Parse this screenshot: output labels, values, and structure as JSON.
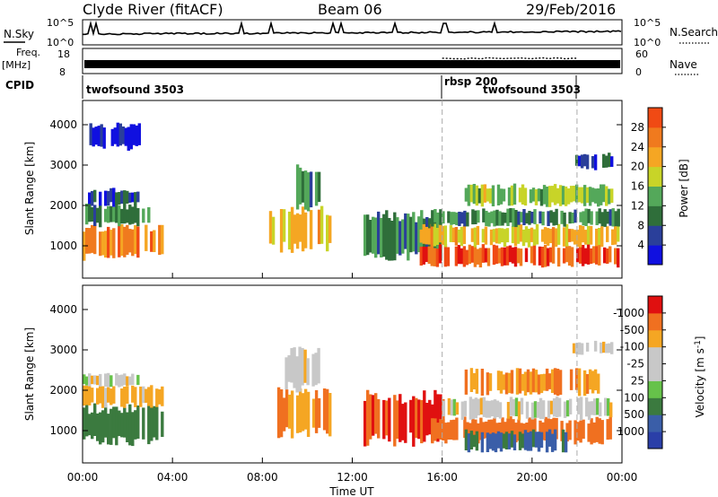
{
  "header": {
    "station": "Clyde River (fitACF)",
    "beam": "Beam 06",
    "date": "29/Feb/2016"
  },
  "status_panels": {
    "nsky_label": "N.Sky",
    "nsky_ticks": [
      "10^5",
      "10^0"
    ],
    "nsearch_label": "N.Search",
    "nsearch_ticks": [
      "10^5",
      "10^0"
    ],
    "freq_label": "Freq.",
    "freq_unit": "[MHz]",
    "freq_ticks": [
      "18",
      "8"
    ],
    "nave_label": "Nave",
    "nave_ticks": [
      "60",
      "0"
    ],
    "cpid_label": "CPID"
  },
  "cpid_segments": [
    {
      "name": "twofsound 3503",
      "start": "00:00",
      "end": "16:00"
    },
    {
      "name": "rbsp 200",
      "start": "16:00",
      "end": "22:00"
    },
    {
      "name": "twofsound 3503",
      "start": "16:00",
      "end": "22:00"
    }
  ],
  "x_axis": {
    "label": "Time UT",
    "ticks": [
      "00:00",
      "04:00",
      "08:00",
      "12:00",
      "16:00",
      "20:00",
      "00:00"
    ],
    "range_hours": [
      0,
      24
    ]
  },
  "power_panel": {
    "ylabel": "Slant Range [km]",
    "yticks": [
      "1000",
      "2000",
      "3000",
      "4000"
    ],
    "colorbar_label": "Power [dB]",
    "colorbar_ticks": [
      "4",
      "8",
      "12",
      "16",
      "20",
      "24",
      "28"
    ]
  },
  "velocity_panel": {
    "ylabel": "Slant Range [km]",
    "yticks": [
      "1000",
      "2000",
      "3000",
      "4000"
    ],
    "colorbar_label": "Velocity [m s",
    "colorbar_sup": "-1",
    "colorbar_label_end": "]",
    "colorbar_ticks": [
      "1000",
      "500",
      "100",
      "25",
      "-25",
      "-100",
      "-500",
      "-1000"
    ]
  },
  "colors": {
    "power_scale": [
      "#1010e0",
      "#2a3f9a",
      "#2f6e3a",
      "#54a85a",
      "#c8d428",
      "#f5a623",
      "#f07a1e",
      "#f04a14",
      "#e01010"
    ],
    "velocity_scale": [
      "#2a3fa8",
      "#3a5ea8",
      "#3b7a3f",
      "#66c24a",
      "#c8c8c8",
      "#c8c8c8",
      "#f5a623",
      "#f07020",
      "#e01010"
    ],
    "guide_line": "#aaaaaa"
  },
  "chart_data": {
    "type": "heatmap",
    "x_unit": "hours UT",
    "y_unit": "km",
    "xlim": [
      0,
      24
    ],
    "ylim": [
      200,
      4600
    ],
    "power_regions": [
      {
        "t0": 0.0,
        "t1": 3.5,
        "r0": 700,
        "r1": 1500,
        "value_db": 24
      },
      {
        "t0": 0.0,
        "t1": 3.0,
        "r0": 1500,
        "r1": 2000,
        "value_db": 12
      },
      {
        "t0": 0.0,
        "t1": 2.5,
        "r0": 2000,
        "r1": 2400,
        "value_db": 8
      },
      {
        "t0": 0.3,
        "t1": 2.5,
        "r0": 3400,
        "r1": 4000,
        "value_db": 4
      },
      {
        "t0": 8.3,
        "t1": 11.0,
        "r0": 900,
        "r1": 1900,
        "value_db": 20
      },
      {
        "t0": 9.5,
        "t1": 10.5,
        "r0": 1900,
        "r1": 3000,
        "value_db": 10
      },
      {
        "t0": 12.5,
        "t1": 16.0,
        "r0": 700,
        "r1": 1800,
        "value_db": 12
      },
      {
        "t0": 15.0,
        "t1": 23.8,
        "r0": 500,
        "r1": 1000,
        "value_db": 28
      },
      {
        "t0": 15.0,
        "t1": 23.8,
        "r0": 1000,
        "r1": 1500,
        "value_db": 20
      },
      {
        "t0": 15.5,
        "t1": 23.8,
        "r0": 1500,
        "r1": 1900,
        "value_db": 12
      },
      {
        "t0": 17.0,
        "t1": 23.5,
        "r0": 2000,
        "r1": 2500,
        "value_db": 16
      },
      {
        "t0": 21.8,
        "t1": 23.5,
        "r0": 2900,
        "r1": 3300,
        "value_db": 8
      }
    ],
    "velocity_regions": [
      {
        "t0": 0.0,
        "t1": 3.5,
        "r0": 700,
        "r1": 1600,
        "value_ms": 100
      },
      {
        "t0": 0.0,
        "t1": 3.5,
        "r0": 1600,
        "r1": 2100,
        "value_ms": -50
      },
      {
        "t0": 0.0,
        "t1": 2.5,
        "r0": 2100,
        "r1": 2400,
        "value_ms": 0
      },
      {
        "t0": 8.3,
        "t1": 11.0,
        "r0": 900,
        "r1": 2000,
        "value_ms": -100
      },
      {
        "t0": 9.0,
        "t1": 10.5,
        "r0": 2000,
        "r1": 3000,
        "value_ms": 0
      },
      {
        "t0": 12.5,
        "t1": 16.0,
        "r0": 700,
        "r1": 1900,
        "value_ms": -500
      },
      {
        "t0": 15.5,
        "t1": 23.5,
        "r0": 700,
        "r1": 1300,
        "value_ms": -300
      },
      {
        "t0": 17.0,
        "t1": 21.5,
        "r0": 500,
        "r1": 1000,
        "value_ms": 300
      },
      {
        "t0": 16.0,
        "t1": 23.5,
        "r0": 1300,
        "r1": 1800,
        "value_ms": 0
      },
      {
        "t0": 17.0,
        "t1": 23.0,
        "r0": 1900,
        "r1": 2500,
        "value_ms": -100
      },
      {
        "t0": 21.8,
        "t1": 23.5,
        "r0": 2900,
        "r1": 3200,
        "value_ms": 0
      }
    ]
  }
}
